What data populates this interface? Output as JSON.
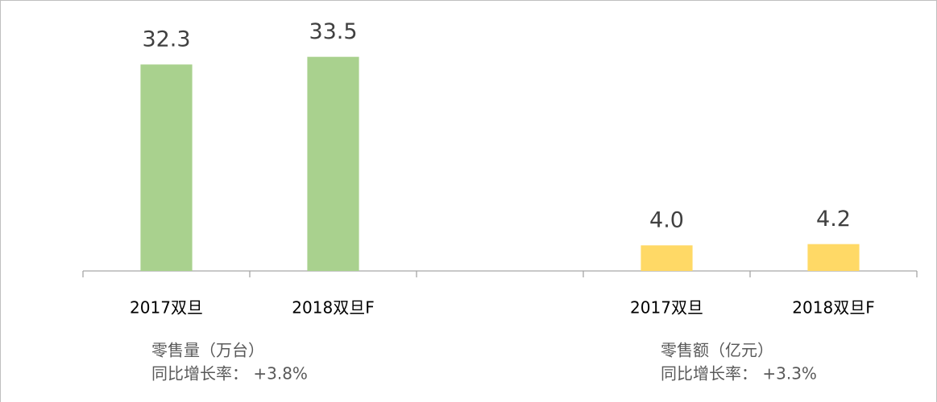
{
  "chart_data": {
    "type": "bar",
    "categories": [
      "2017双旦",
      "2018双旦F",
      null,
      "2017双旦",
      "2018双旦F"
    ],
    "values": [
      32.3,
      33.5,
      null,
      4.0,
      4.2
    ],
    "value_labels": [
      "32.3",
      "33.5",
      null,
      "4.0",
      "4.2"
    ],
    "colors": [
      "#a9d18e",
      "#a9d18e",
      null,
      "#ffd966",
      "#ffd966"
    ],
    "ylim": [
      0,
      40
    ],
    "annotations": [
      {
        "lines": [
          "零售量（万台）",
          "同比增长率： +3.8%"
        ]
      },
      {
        "lines": [
          "零售额（亿元）",
          "同比增长率： +3.3%"
        ]
      }
    ]
  }
}
